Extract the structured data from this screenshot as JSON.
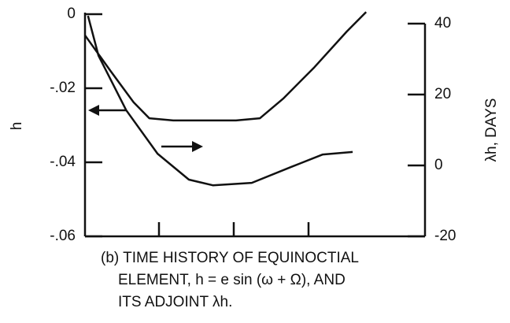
{
  "chart_data": {
    "type": "line",
    "y_label": "h",
    "y2_label": "λh, DAYS",
    "caption": [
      "(b) TIME HISTORY OF EQUINOCTIAL",
      "ELEMENT, h = e sin (ω + Ω), AND",
      "ITS ADJOINT λh."
    ],
    "xlim": [
      0,
      4.5
    ],
    "ylim": [
      -0.06,
      0
    ],
    "yticks": [
      0,
      {
        "value": -0.02,
        "label": "-.02"
      },
      {
        "value": -0.04,
        "label": "-.04"
      },
      {
        "value": -0.06,
        "label": "-.06"
      }
    ],
    "y2lim": [
      -20,
      40
    ],
    "y2ticks": [
      40,
      20,
      0,
      -20
    ],
    "series": [
      {
        "color": "#111",
        "x": [
          0,
          0.34,
          0.65,
          0.86,
          1.18,
          2.02,
          2.34,
          2.65,
          3.07,
          3.5,
          3.76
        ],
        "values": [
          -0.0057,
          -0.0153,
          -0.0238,
          -0.0281,
          -0.0287,
          -0.0287,
          -0.0281,
          -0.0228,
          -0.0143,
          -0.0047,
          0.0006
        ]
      },
      {
        "color": "#111",
        "axis": "y2",
        "x": [
          0.04,
          0.18,
          0.55,
          0.97,
          1.39,
          1.71,
          2.23,
          2.76,
          3.18,
          3.58
        ],
        "values": [
          42.2,
          31,
          15.6,
          3.3,
          -4,
          -5.6,
          -4.9,
          -0.4,
          3.1,
          3.8
        ]
      }
    ]
  }
}
